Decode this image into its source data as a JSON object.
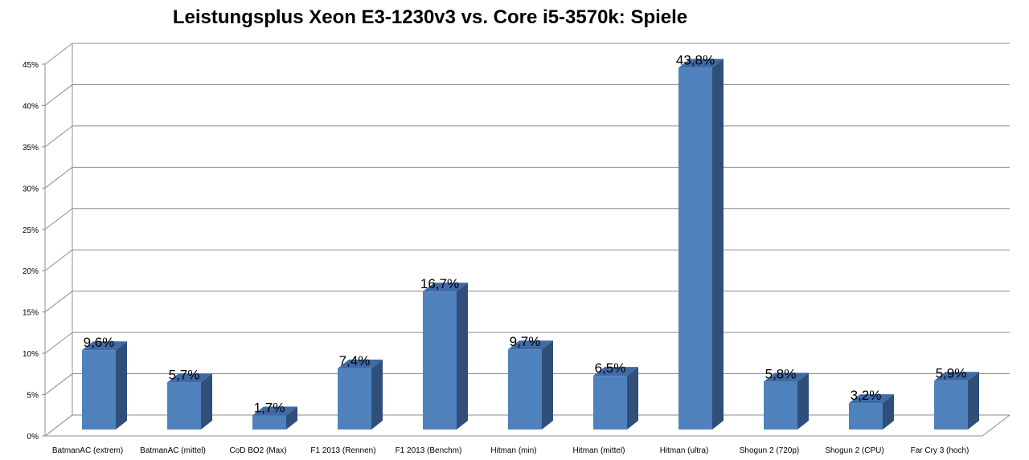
{
  "chart_data": {
    "type": "bar",
    "title": "Leistungsplus Xeon E3-1230v3 vs. Core i5-3570k: Spiele",
    "categories": [
      "BatmanAC (extrem)",
      "BatmanAC (mittel)",
      "CoD BO2 (Max)",
      "F1 2013 (Rennen)",
      "F1 2013 (Benchm)",
      "Hitman (min)",
      "Hitman (mittel)",
      "Hitman (ultra)",
      "Shogun 2 (720p)",
      "Shogun 2 (CPU)",
      "Far Cry 3 (hoch)"
    ],
    "values": [
      9.6,
      5.7,
      1.7,
      7.4,
      16.7,
      9.7,
      6.5,
      43.8,
      5.8,
      3.2,
      5.9
    ],
    "data_labels": [
      "9,6%",
      "5,7%",
      "1,7%",
      "7,4%",
      "16,7%",
      "9,7%",
      "6,5%",
      "43,8%",
      "5,8%",
      "3,2%",
      "5,9%"
    ],
    "y_ticks": [
      "0%",
      "5%",
      "10%",
      "15%",
      "20%",
      "25%",
      "30%",
      "35%",
      "40%",
      "45%"
    ],
    "ylim": [
      0,
      45
    ],
    "grid": true,
    "legend": "none",
    "colors": {
      "bar_front": "#4f81bd",
      "bar_side": "#2f4f7a",
      "bar_top": "#3f6aa5",
      "grid": "#8c8c8c"
    }
  }
}
